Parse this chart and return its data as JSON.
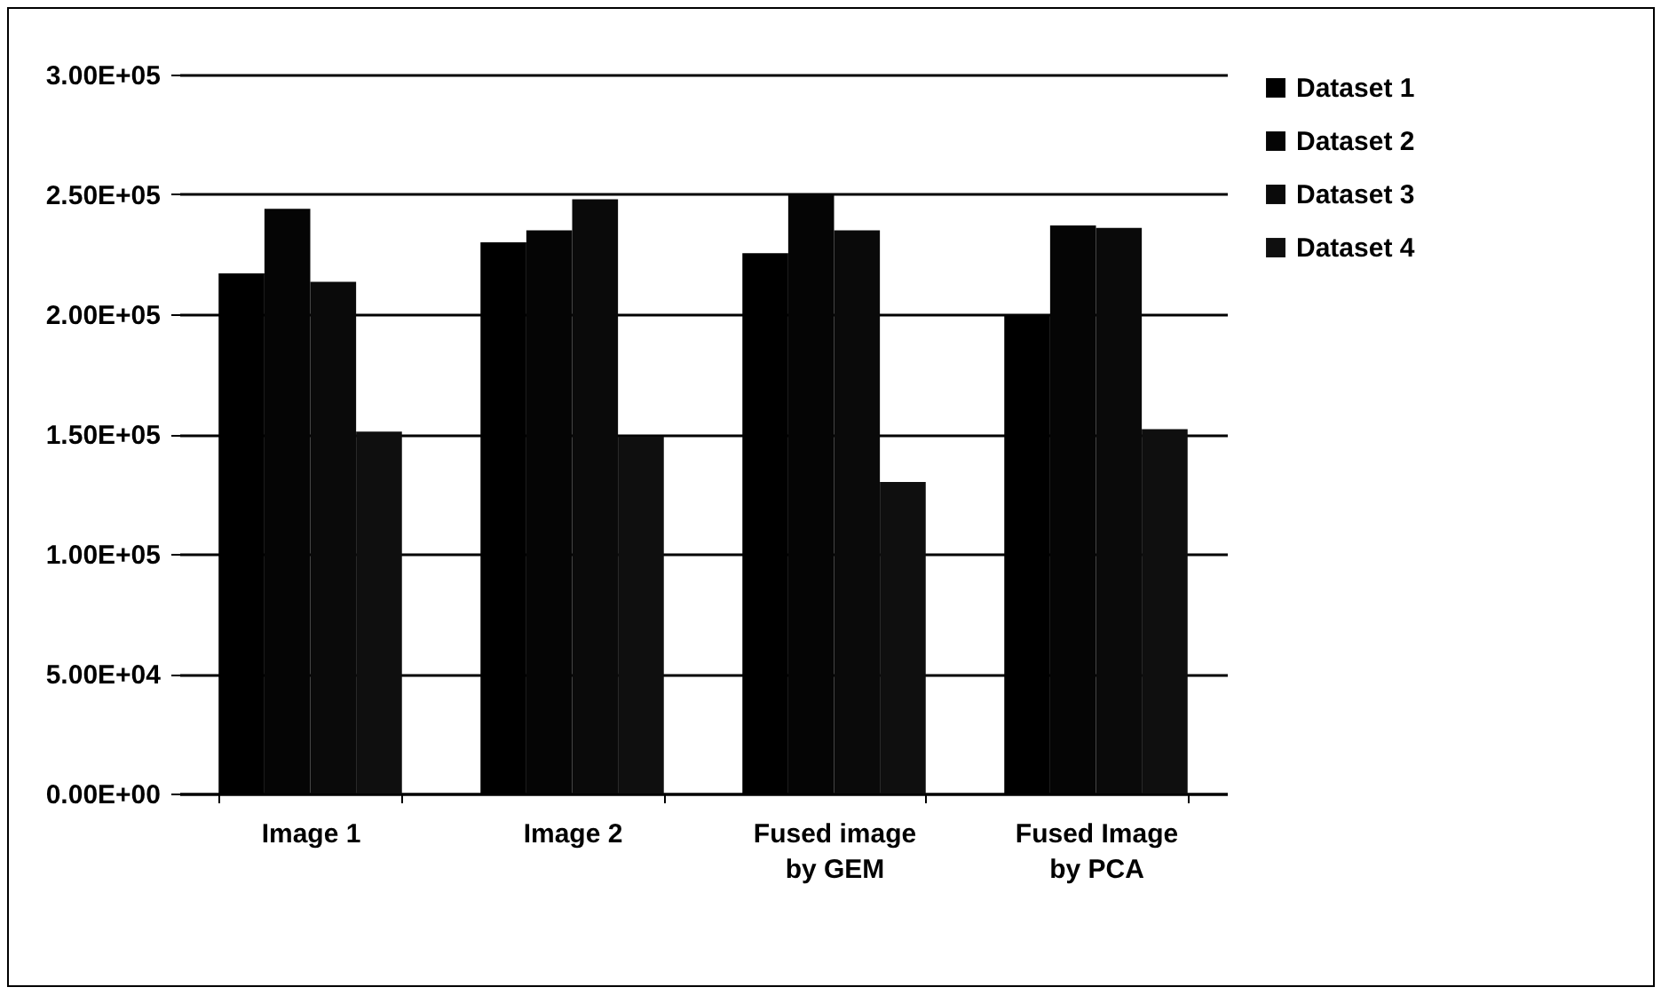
{
  "chart_data": {
    "type": "bar",
    "categories": [
      "Image 1",
      "Image 2",
      "Fused image by GEM",
      "Fused Image by PCA"
    ],
    "series": [
      {
        "name": "Dataset 1",
        "color": "#000000",
        "values": [
          217000,
          230000,
          225500,
          200000
        ]
      },
      {
        "name": "Dataset 2",
        "color": "#050505",
        "values": [
          244000,
          235000,
          250000,
          237000
        ]
      },
      {
        "name": "Dataset 3",
        "color": "#0a0a0a",
        "values": [
          213500,
          248000,
          235000,
          236000
        ]
      },
      {
        "name": "Dataset 4",
        "color": "#0f0f0f",
        "values": [
          151000,
          149000,
          130000,
          152000
        ]
      }
    ],
    "ylim": [
      0,
      300000
    ],
    "yticks": [
      {
        "value": 0,
        "label": "0.00E+00"
      },
      {
        "value": 50000,
        "label": "5.00E+04"
      },
      {
        "value": 100000,
        "label": "1.00E+05"
      },
      {
        "value": 150000,
        "label": "1.50E+05"
      },
      {
        "value": 200000,
        "label": "2.00E+05"
      },
      {
        "value": 250000,
        "label": "2.50E+05"
      },
      {
        "value": 300000,
        "label": "3.00E+05"
      }
    ],
    "grid": "y",
    "legend": "right"
  }
}
